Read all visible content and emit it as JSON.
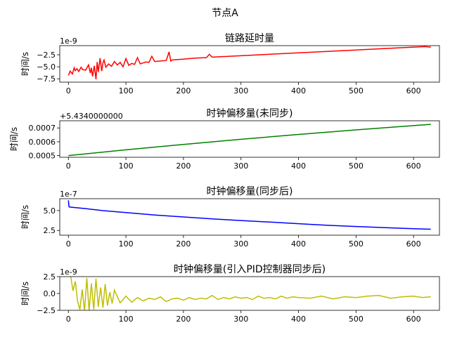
{
  "figure_title": "节点A",
  "chart_data": [
    {
      "type": "line",
      "title": "链路延时量",
      "ylabel": "时间/s",
      "offset_text": "1e-9",
      "color": "#ff0000",
      "xlim": [
        -15,
        645
      ],
      "ylim": [
        -8.2,
        -0.6
      ],
      "xticks": [
        0,
        100,
        200,
        300,
        400,
        500,
        600
      ],
      "yticks": [
        -2.5,
        -5.0,
        -7.5
      ],
      "ytick_labels": [
        "−2.5",
        "−5.0",
        "−7.5"
      ],
      "series": [
        {
          "x": [
            0,
            3,
            7,
            10,
            12,
            15,
            18,
            22,
            25,
            30,
            35,
            38,
            40,
            42,
            45,
            48,
            50,
            52,
            55,
            58,
            60,
            62,
            65,
            70,
            75,
            80,
            85,
            90,
            95,
            100,
            105,
            110,
            115,
            120,
            125,
            130,
            135,
            140,
            145,
            150,
            160,
            170,
            175,
            178,
            180,
            190,
            200,
            220,
            240,
            245,
            250,
            300,
            350,
            400,
            450,
            500,
            550,
            600,
            620,
            630
          ],
          "y": [
            -6.8,
            -5.9,
            -6.5,
            -5.2,
            -5.8,
            -5.4,
            -6.0,
            -5.1,
            -5.6,
            -5.7,
            -4.6,
            -6.3,
            -5.2,
            -7.0,
            -4.8,
            -7.6,
            -4.0,
            -6.1,
            -3.2,
            -5.9,
            -4.2,
            -3.6,
            -5.1,
            -4.4,
            -4.9,
            -3.9,
            -4.6,
            -4.1,
            -5.0,
            -3.3,
            -4.7,
            -4.3,
            -4.5,
            -3.1,
            -4.4,
            -4.2,
            -4.0,
            -4.1,
            -2.8,
            -3.9,
            -3.8,
            -3.7,
            -1.9,
            -3.8,
            -3.6,
            -3.5,
            -3.4,
            -3.2,
            -3.1,
            -2.4,
            -3.0,
            -2.7,
            -2.4,
            -2.1,
            -1.8,
            -1.5,
            -1.2,
            -0.9,
            -0.8,
            -0.9
          ]
        }
      ]
    },
    {
      "type": "line",
      "title": "时钟偏移量(未同步)",
      "ylabel": "时间/s",
      "offset_text": "+5.4340000000",
      "color": "#008000",
      "xlim": [
        -15,
        645
      ],
      "ylim": [
        0.000488,
        0.000752
      ],
      "xticks": [
        0,
        100,
        200,
        300,
        400,
        500,
        600
      ],
      "yticks": [
        0.0005,
        0.0006,
        0.0007
      ],
      "ytick_labels": [
        "0.0005",
        "0.0006",
        "0.0007"
      ],
      "series": [
        {
          "x": [
            0,
            100,
            200,
            300,
            400,
            500,
            600,
            630
          ],
          "y": [
            0.0005,
            0.000542,
            0.000581,
            0.000618,
            0.000653,
            0.000686,
            0.000717,
            0.000726
          ]
        }
      ]
    },
    {
      "type": "line",
      "title": "时钟偏移量(同步后)",
      "ylabel": "时间/s",
      "offset_text": "1e-7",
      "color": "#0000ff",
      "xlim": [
        -15,
        645
      ],
      "ylim": [
        1.9,
        6.5
      ],
      "xticks": [
        0,
        100,
        200,
        300,
        400,
        500,
        600
      ],
      "yticks": [
        2.5,
        5.0
      ],
      "ytick_labels": [
        "2.5",
        "5.0"
      ],
      "series": [
        {
          "x": [
            0,
            1,
            2,
            30,
            60,
            100,
            150,
            200,
            250,
            300,
            350,
            400,
            450,
            500,
            550,
            600,
            630
          ],
          "y": [
            6.3,
            5.5,
            5.45,
            5.25,
            5.0,
            4.75,
            4.45,
            4.2,
            3.95,
            3.75,
            3.55,
            3.35,
            3.15,
            3.0,
            2.85,
            2.72,
            2.65
          ]
        }
      ]
    },
    {
      "type": "line",
      "title": "时钟偏移量(引入PID控制器同步后)",
      "ylabel": "时间/s",
      "offset_text": "1e-9",
      "color": "#bfbf00",
      "xlim": [
        -15,
        645
      ],
      "ylim": [
        -2.5,
        2.5
      ],
      "xticks": [
        0,
        100,
        200,
        300,
        400,
        500,
        600
      ],
      "yticks": [
        2.5,
        0.0,
        -2.5
      ],
      "ytick_labels": [
        "2.5",
        "0.0",
        "−2.5"
      ],
      "series": [
        {
          "x": [
            0,
            4,
            8,
            12,
            16,
            20,
            24,
            28,
            32,
            36,
            40,
            44,
            48,
            52,
            56,
            60,
            64,
            68,
            72,
            76,
            80,
            90,
            100,
            110,
            120,
            130,
            140,
            150,
            160,
            170,
            180,
            190,
            200,
            210,
            220,
            230,
            240,
            250,
            260,
            270,
            280,
            290,
            300,
            310,
            320,
            330,
            340,
            350,
            360,
            370,
            380,
            390,
            400,
            420,
            440,
            460,
            480,
            500,
            520,
            540,
            560,
            580,
            600,
            615,
            630
          ],
          "y": [
            3.5,
            2.6,
            0.4,
            1.8,
            -1.2,
            -2.4,
            0.6,
            -2.6,
            2.3,
            -2.6,
            1.5,
            -2.4,
            2.2,
            -2.0,
            0.9,
            -2.1,
            1.4,
            -1.8,
            0.2,
            -1.5,
            0.5,
            -1.4,
            -0.4,
            -1.3,
            -0.6,
            -1.1,
            -0.7,
            -0.9,
            -0.5,
            -1.2,
            -0.8,
            -0.7,
            -1.0,
            -0.6,
            -0.9,
            -0.7,
            -0.8,
            -0.3,
            -0.9,
            -0.6,
            -0.8,
            -0.5,
            -0.7,
            -0.6,
            -0.9,
            -0.4,
            -0.7,
            -0.6,
            -0.8,
            -0.4,
            -0.7,
            -0.5,
            -0.6,
            -0.7,
            -0.4,
            -0.8,
            -0.5,
            -0.6,
            -0.4,
            -0.3,
            -0.7,
            -0.5,
            -0.4,
            -0.6,
            -0.5
          ]
        }
      ]
    }
  ]
}
